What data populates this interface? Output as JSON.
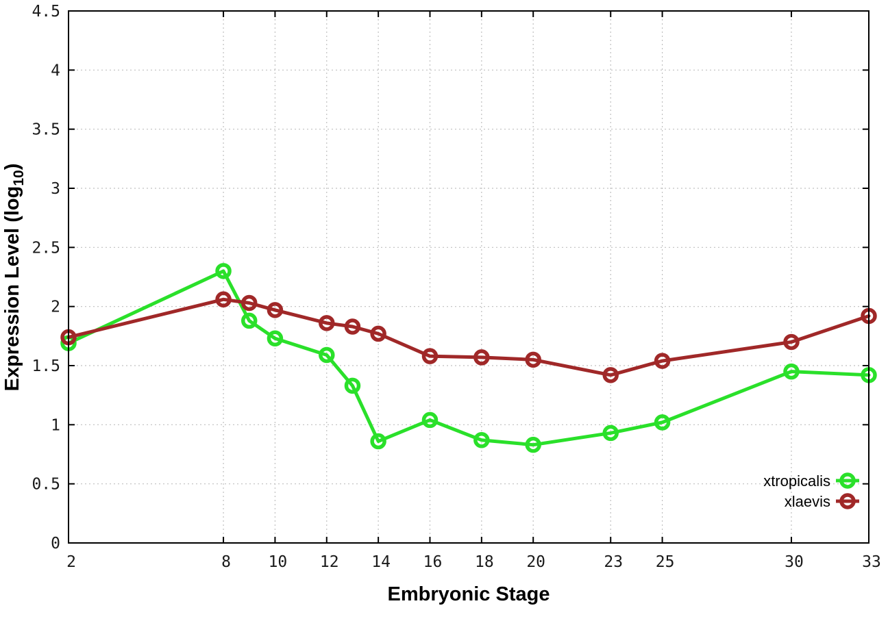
{
  "chart_data": {
    "type": "line",
    "title": "",
    "xlabel": "Embryonic Stage",
    "ylabel": {
      "prefix": "Expression Level (log",
      "subscript": "10",
      "suffix": ")"
    },
    "x_ticks": [
      2,
      8,
      10,
      12,
      14,
      16,
      18,
      20,
      23,
      25,
      30,
      33
    ],
    "y_ticks": [
      0,
      0.5,
      1,
      1.5,
      2,
      2.5,
      3,
      3.5,
      4,
      4.5
    ],
    "xlim": [
      2,
      33
    ],
    "ylim": [
      0,
      4.5
    ],
    "grid": true,
    "legend_position": "bottom-right",
    "x": [
      2,
      8,
      9,
      10,
      12,
      13,
      14,
      16,
      18,
      20,
      23,
      25,
      30,
      33
    ],
    "series": [
      {
        "name": "xtropicalis",
        "color": "#2ae02a",
        "values": [
          1.69,
          2.3,
          1.88,
          1.73,
          1.59,
          1.33,
          0.86,
          1.04,
          0.87,
          0.83,
          0.93,
          1.02,
          1.45,
          1.42
        ]
      },
      {
        "name": "xlaevis",
        "color": "#a02828",
        "values": [
          1.74,
          2.06,
          2.03,
          1.97,
          1.86,
          1.83,
          1.77,
          1.58,
          1.57,
          1.55,
          1.42,
          1.54,
          1.7,
          1.92
        ]
      }
    ],
    "colors": {
      "axis": "#000000",
      "grid": "#bfbfbf",
      "background": "#ffffff",
      "tick_text": "#1a1a1a"
    }
  }
}
